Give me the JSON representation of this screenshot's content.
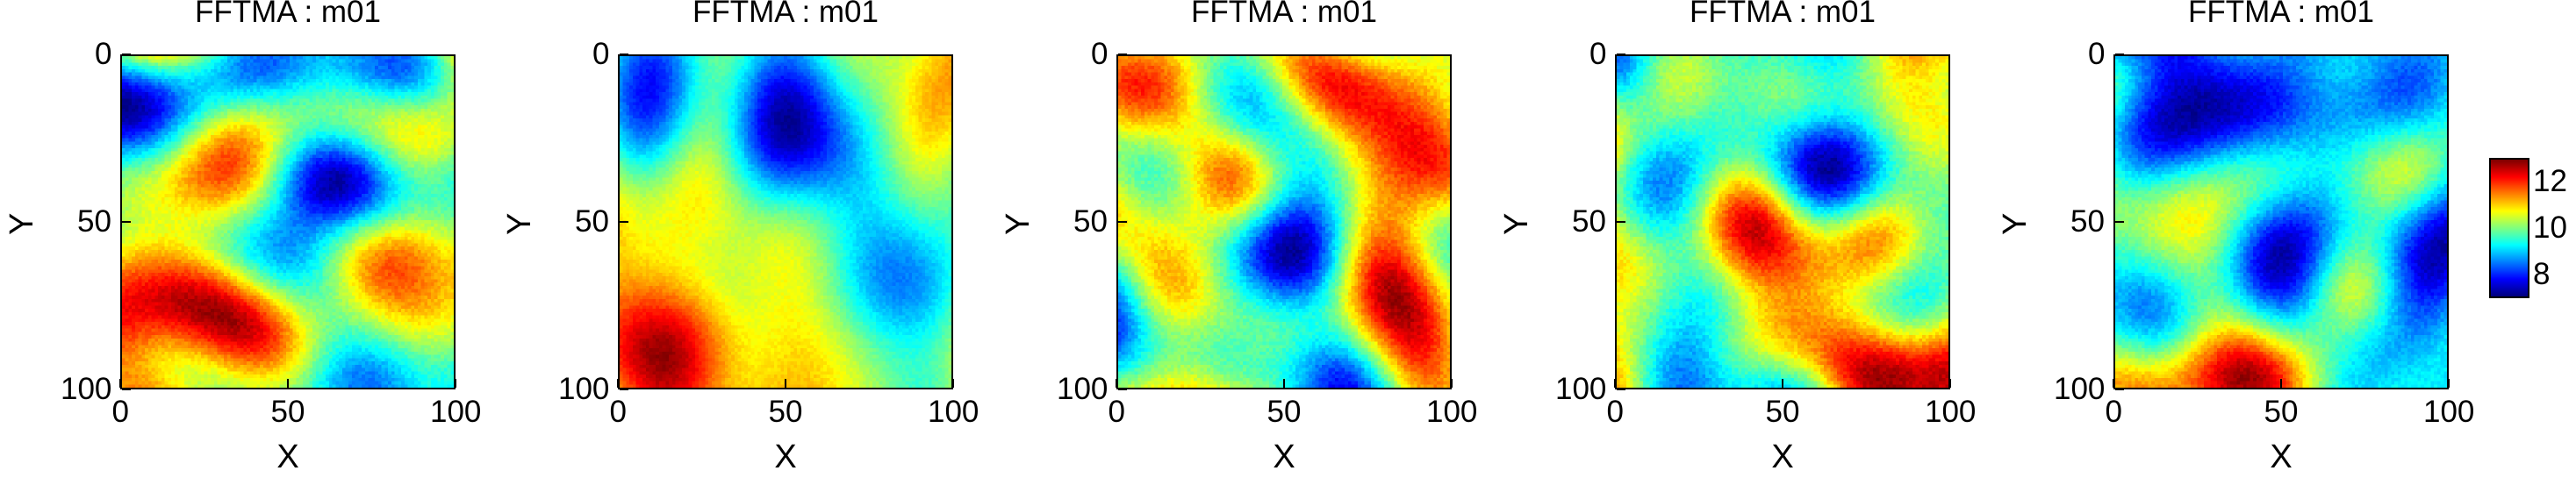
{
  "chart_data": [
    {
      "type": "heatmap",
      "title": "FFTMA : m01",
      "xlabel": "X",
      "ylabel": "Y",
      "xlim": [
        0,
        100
      ],
      "ylim": [
        0,
        100
      ],
      "x_ticks": [
        "0",
        "50",
        "100"
      ],
      "y_ticks": [
        "0",
        "50",
        "100"
      ],
      "seed": 11
    },
    {
      "type": "heatmap",
      "title": "FFTMA : m01",
      "xlabel": "X",
      "ylabel": "Y",
      "xlim": [
        0,
        100
      ],
      "ylim": [
        0,
        100
      ],
      "x_ticks": [
        "0",
        "50",
        "100"
      ],
      "y_ticks": [
        "0",
        "50",
        "100"
      ],
      "seed": 23
    },
    {
      "type": "heatmap",
      "title": "FFTMA : m01",
      "xlabel": "X",
      "ylabel": "Y",
      "xlim": [
        0,
        100
      ],
      "ylim": [
        0,
        100
      ],
      "x_ticks": [
        "0",
        "50",
        "100"
      ],
      "y_ticks": [
        "0",
        "50",
        "100"
      ],
      "seed": 37
    },
    {
      "type": "heatmap",
      "title": "FFTMA : m01",
      "xlabel": "X",
      "ylabel": "Y",
      "xlim": [
        0,
        100
      ],
      "ylim": [
        0,
        100
      ],
      "x_ticks": [
        "0",
        "50",
        "100"
      ],
      "y_ticks": [
        "0",
        "50",
        "100"
      ],
      "seed": 51
    },
    {
      "type": "heatmap",
      "title": "FFTMA : m01",
      "xlabel": "X",
      "ylabel": "Y",
      "xlim": [
        0,
        100
      ],
      "ylim": [
        0,
        100
      ],
      "x_ticks": [
        "0",
        "50",
        "100"
      ],
      "y_ticks": [
        "0",
        "50",
        "100"
      ],
      "seed": 67
    }
  ],
  "colorbar": {
    "colormap": "jet",
    "range": [
      7,
      13
    ],
    "ticks": [
      {
        "label": "12",
        "value": 12
      },
      {
        "label": "10",
        "value": 10
      },
      {
        "label": "8",
        "value": 8
      }
    ]
  }
}
